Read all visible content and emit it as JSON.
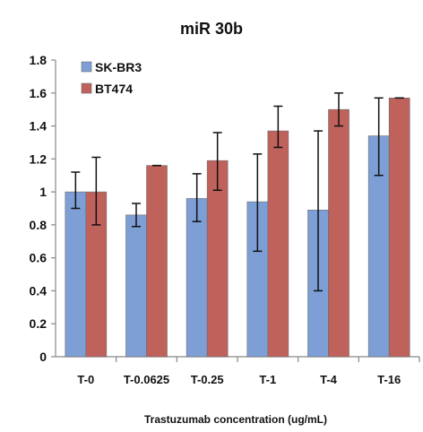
{
  "chart_data": {
    "type": "bar",
    "title": "miR 30b",
    "xlabel": "Trastuzumab concentration (ug/mL)",
    "ylabel": "",
    "ylim": [
      0,
      1.8
    ],
    "yticks": [
      "0",
      "0.2",
      "0.4",
      "0.6",
      "0.8",
      "1",
      "1.2",
      "1.4",
      "1.6",
      "1.8"
    ],
    "grid": false,
    "legend_position": "top-left",
    "categories": [
      "T-0",
      "T-0.0625",
      "T-0.25",
      "T-1",
      "T-4",
      "T-16"
    ],
    "series": [
      {
        "name": "SK-BR3",
        "color": "#7d9fd6",
        "values": [
          1.0,
          0.86,
          0.96,
          0.94,
          0.89,
          1.34
        ],
        "err_low": [
          0.9,
          0.79,
          0.82,
          0.64,
          0.4,
          1.1
        ],
        "err_high": [
          1.12,
          0.93,
          1.11,
          1.23,
          1.37,
          1.57
        ]
      },
      {
        "name": "BT474",
        "color": "#c0625c",
        "values": [
          1.0,
          1.16,
          1.19,
          1.37,
          1.5,
          1.57
        ],
        "err_low": [
          0.8,
          1.16,
          1.01,
          1.27,
          1.4,
          1.57
        ],
        "err_high": [
          1.21,
          1.16,
          1.36,
          1.52,
          1.6,
          1.57
        ]
      }
    ]
  }
}
